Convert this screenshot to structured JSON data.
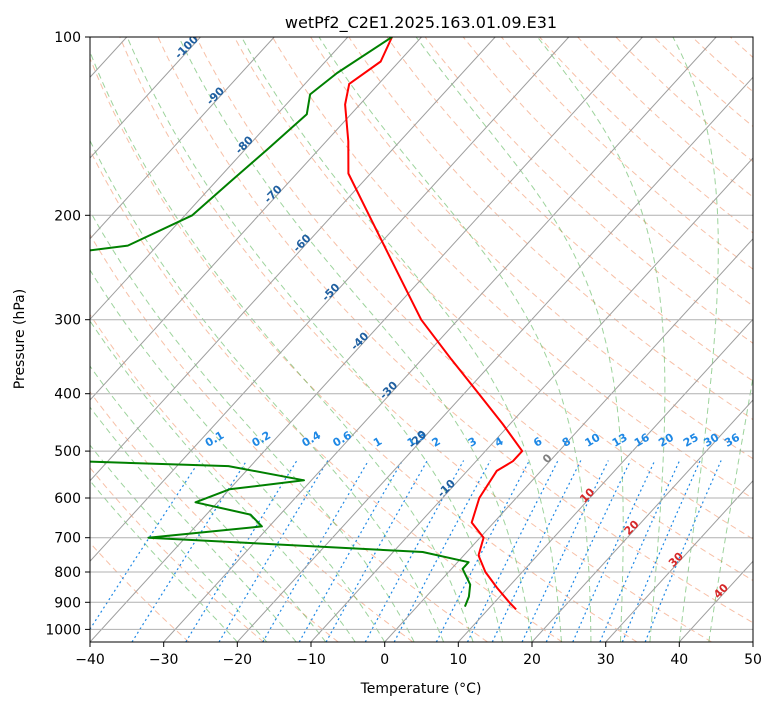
{
  "chart_data": {
    "type": "skew-t",
    "title": "wetPf2_C2E1.2025.163.01.09.E31",
    "xlabel": "Temperature (°C)",
    "ylabel": "Pressure (hPa)",
    "xlim": [
      -40,
      50
    ],
    "ylim": [
      1050,
      100
    ],
    "y_scale": "log",
    "x_ticks": [
      -40,
      -30,
      -20,
      -10,
      0,
      10,
      20,
      30,
      40,
      50
    ],
    "y_ticks": [
      100,
      200,
      300,
      400,
      500,
      600,
      700,
      800,
      900,
      1000
    ],
    "grid": true,
    "colors": {
      "temperature": "#ff0000",
      "dewpoint": "#008000",
      "isotherm": "#9e9e9e",
      "dry_adiabat": "#f4a582",
      "moist_adiabat": "#4daf4a",
      "mixing_ratio": "#1e88e5",
      "isotherm_label": "#1f5fa0",
      "moist_label": "#d62728",
      "zero_label": "#808080"
    },
    "series": [
      {
        "kind": "temperature",
        "points": [
          {
            "p": 100,
            "t": -74
          },
          {
            "p": 110,
            "t": -72.5
          },
          {
            "p": 120,
            "t": -74
          },
          {
            "p": 130,
            "t": -72
          },
          {
            "p": 150,
            "t": -67
          },
          {
            "p": 170,
            "t": -63
          },
          {
            "p": 200,
            "t": -55
          },
          {
            "p": 250,
            "t": -44
          },
          {
            "p": 300,
            "t": -35
          },
          {
            "p": 350,
            "t": -26
          },
          {
            "p": 400,
            "t": -18
          },
          {
            "p": 450,
            "t": -11
          },
          {
            "p": 500,
            "t": -5
          },
          {
            "p": 520,
            "t": -5
          },
          {
            "p": 540,
            "t": -6
          },
          {
            "p": 600,
            "t": -5
          },
          {
            "p": 660,
            "t": -3
          },
          {
            "p": 700,
            "t": 0.5
          },
          {
            "p": 750,
            "t": 2
          },
          {
            "p": 800,
            "t": 5
          },
          {
            "p": 850,
            "t": 8.5
          },
          {
            "p": 900,
            "t": 12
          },
          {
            "p": 925,
            "t": 13.8
          }
        ]
      },
      {
        "kind": "dewpoint",
        "points": [
          {
            "p": 100,
            "t": -74
          },
          {
            "p": 115,
            "t": -77
          },
          {
            "p": 125,
            "t": -78
          },
          {
            "p": 135,
            "t": -76
          },
          {
            "p": 155,
            "t": -77
          },
          {
            "p": 175,
            "t": -78
          },
          {
            "p": 200,
            "t": -79
          },
          {
            "p": 225,
            "t": -84
          },
          {
            "p": 240,
            "t": -100
          },
          {
            "p": 250,
            "t": -96
          },
          {
            "p": 265,
            "t": -101
          },
          {
            "p": 290,
            "t": -107
          },
          {
            "p": 330,
            "t": -106
          },
          {
            "p": 380,
            "t": -110
          },
          {
            "p": 410,
            "t": -102
          },
          {
            "p": 440,
            "t": -107
          },
          {
            "p": 500,
            "t": -108
          },
          {
            "p": 530,
            "t": -43
          },
          {
            "p": 560,
            "t": -31
          },
          {
            "p": 580,
            "t": -40
          },
          {
            "p": 610,
            "t": -43
          },
          {
            "p": 640,
            "t": -34
          },
          {
            "p": 670,
            "t": -31
          },
          {
            "p": 700,
            "t": -45
          },
          {
            "p": 740,
            "t": -6
          },
          {
            "p": 770,
            "t": 1.5
          },
          {
            "p": 790,
            "t": 1.5
          },
          {
            "p": 840,
            "t": 4.5
          },
          {
            "p": 880,
            "t": 5.8
          },
          {
            "p": 915,
            "t": 6.5
          }
        ]
      }
    ],
    "mixing_ratio_labels": [
      "0.1",
      "0.2",
      "0.4",
      "0.6",
      "1",
      "1.5",
      "2",
      "3",
      "4",
      "6",
      "8",
      "10",
      "13",
      "16",
      "20",
      "25",
      "30",
      "36"
    ],
    "isotherm_labels": [
      "-100",
      "-90",
      "-80",
      "-70",
      "-60",
      "-50",
      "-40",
      "-30",
      "-20",
      "-10"
    ],
    "moist_adiabat_labels": [
      "0",
      "10",
      "20",
      "30",
      "40"
    ]
  }
}
